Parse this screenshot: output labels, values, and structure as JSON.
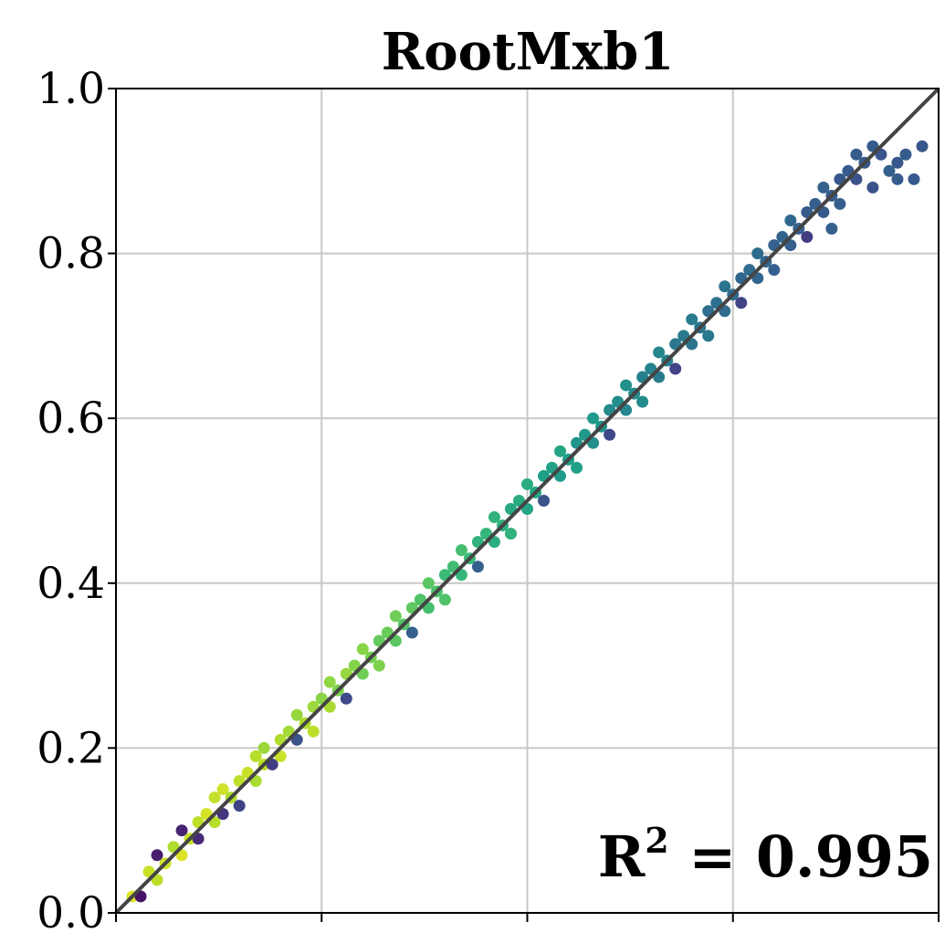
{
  "chart_data": {
    "type": "scatter",
    "title": "RootMxb1",
    "xlabel": "",
    "ylabel": "",
    "xlim": [
      0.0,
      1.0
    ],
    "ylim": [
      0.0,
      1.0
    ],
    "grid": true,
    "y_ticks": [
      0.0,
      0.2,
      0.4,
      0.6,
      0.8,
      1.0
    ],
    "y_tick_labels": [
      "0.0",
      "0.2",
      "0.4",
      "0.6",
      "0.8",
      "1.0"
    ],
    "x_ticks": [
      0.0,
      0.25,
      0.5,
      0.75,
      1.0
    ],
    "x_tick_labels": [
      "",
      "",
      "",
      "",
      ""
    ],
    "reference_line": {
      "from": [
        0.0,
        0.0
      ],
      "to": [
        1.0,
        1.0
      ],
      "color": "#444444"
    },
    "annotation": {
      "base": "R",
      "sup": "2",
      "rest": " = 0.995",
      "position": "bottom-right"
    },
    "colormap": "viridis",
    "colors": {
      "axis": "#000000",
      "grid": "#c8c8c8",
      "reference_line": "#444444"
    },
    "points": [
      {
        "x": 0.02,
        "y": 0.02,
        "c": 0.95
      },
      {
        "x": 0.03,
        "y": 0.02,
        "c": 0.05
      },
      {
        "x": 0.04,
        "y": 0.05,
        "c": 0.92
      },
      {
        "x": 0.05,
        "y": 0.04,
        "c": 0.9
      },
      {
        "x": 0.05,
        "y": 0.07,
        "c": 0.08
      },
      {
        "x": 0.06,
        "y": 0.06,
        "c": 0.93
      },
      {
        "x": 0.07,
        "y": 0.08,
        "c": 0.88
      },
      {
        "x": 0.08,
        "y": 0.07,
        "c": 0.95
      },
      {
        "x": 0.08,
        "y": 0.1,
        "c": 0.1
      },
      {
        "x": 0.09,
        "y": 0.09,
        "c": 0.92
      },
      {
        "x": 0.1,
        "y": 0.11,
        "c": 0.9
      },
      {
        "x": 0.1,
        "y": 0.09,
        "c": 0.12
      },
      {
        "x": 0.11,
        "y": 0.12,
        "c": 0.94
      },
      {
        "x": 0.12,
        "y": 0.11,
        "c": 0.89
      },
      {
        "x": 0.12,
        "y": 0.14,
        "c": 0.91
      },
      {
        "x": 0.13,
        "y": 0.12,
        "c": 0.15
      },
      {
        "x": 0.13,
        "y": 0.15,
        "c": 0.93
      },
      {
        "x": 0.14,
        "y": 0.14,
        "c": 0.88
      },
      {
        "x": 0.15,
        "y": 0.16,
        "c": 0.9
      },
      {
        "x": 0.15,
        "y": 0.13,
        "c": 0.2
      },
      {
        "x": 0.16,
        "y": 0.17,
        "c": 0.92
      },
      {
        "x": 0.17,
        "y": 0.16,
        "c": 0.87
      },
      {
        "x": 0.17,
        "y": 0.19,
        "c": 0.89
      },
      {
        "x": 0.18,
        "y": 0.18,
        "c": 0.9
      },
      {
        "x": 0.18,
        "y": 0.2,
        "c": 0.85
      },
      {
        "x": 0.19,
        "y": 0.18,
        "c": 0.18
      },
      {
        "x": 0.2,
        "y": 0.21,
        "c": 0.88
      },
      {
        "x": 0.2,
        "y": 0.19,
        "c": 0.92
      },
      {
        "x": 0.21,
        "y": 0.22,
        "c": 0.86
      },
      {
        "x": 0.22,
        "y": 0.21,
        "c": 0.25
      },
      {
        "x": 0.22,
        "y": 0.24,
        "c": 0.84
      },
      {
        "x": 0.23,
        "y": 0.23,
        "c": 0.88
      },
      {
        "x": 0.24,
        "y": 0.25,
        "c": 0.85
      },
      {
        "x": 0.24,
        "y": 0.22,
        "c": 0.9
      },
      {
        "x": 0.25,
        "y": 0.26,
        "c": 0.82
      },
      {
        "x": 0.26,
        "y": 0.25,
        "c": 0.87
      },
      {
        "x": 0.26,
        "y": 0.28,
        "c": 0.83
      },
      {
        "x": 0.27,
        "y": 0.27,
        "c": 0.8
      },
      {
        "x": 0.28,
        "y": 0.29,
        "c": 0.84
      },
      {
        "x": 0.28,
        "y": 0.26,
        "c": 0.22
      },
      {
        "x": 0.29,
        "y": 0.3,
        "c": 0.81
      },
      {
        "x": 0.3,
        "y": 0.29,
        "c": 0.78
      },
      {
        "x": 0.3,
        "y": 0.32,
        "c": 0.82
      },
      {
        "x": 0.31,
        "y": 0.31,
        "c": 0.79
      },
      {
        "x": 0.32,
        "y": 0.33,
        "c": 0.76
      },
      {
        "x": 0.32,
        "y": 0.3,
        "c": 0.8
      },
      {
        "x": 0.33,
        "y": 0.34,
        "c": 0.77
      },
      {
        "x": 0.34,
        "y": 0.33,
        "c": 0.74
      },
      {
        "x": 0.34,
        "y": 0.36,
        "c": 0.78
      },
      {
        "x": 0.35,
        "y": 0.35,
        "c": 0.73
      },
      {
        "x": 0.36,
        "y": 0.37,
        "c": 0.75
      },
      {
        "x": 0.36,
        "y": 0.34,
        "c": 0.3
      },
      {
        "x": 0.37,
        "y": 0.38,
        "c": 0.72
      },
      {
        "x": 0.38,
        "y": 0.37,
        "c": 0.7
      },
      {
        "x": 0.38,
        "y": 0.4,
        "c": 0.74
      },
      {
        "x": 0.39,
        "y": 0.39,
        "c": 0.71
      },
      {
        "x": 0.4,
        "y": 0.41,
        "c": 0.68
      },
      {
        "x": 0.4,
        "y": 0.38,
        "c": 0.72
      },
      {
        "x": 0.41,
        "y": 0.42,
        "c": 0.69
      },
      {
        "x": 0.42,
        "y": 0.41,
        "c": 0.66
      },
      {
        "x": 0.42,
        "y": 0.44,
        "c": 0.7
      },
      {
        "x": 0.43,
        "y": 0.43,
        "c": 0.67
      },
      {
        "x": 0.44,
        "y": 0.45,
        "c": 0.64
      },
      {
        "x": 0.44,
        "y": 0.42,
        "c": 0.3
      },
      {
        "x": 0.45,
        "y": 0.46,
        "c": 0.66
      },
      {
        "x": 0.46,
        "y": 0.45,
        "c": 0.62
      },
      {
        "x": 0.46,
        "y": 0.48,
        "c": 0.65
      },
      {
        "x": 0.47,
        "y": 0.47,
        "c": 0.63
      },
      {
        "x": 0.48,
        "y": 0.49,
        "c": 0.6
      },
      {
        "x": 0.48,
        "y": 0.46,
        "c": 0.64
      },
      {
        "x": 0.49,
        "y": 0.5,
        "c": 0.61
      },
      {
        "x": 0.5,
        "y": 0.49,
        "c": 0.58
      },
      {
        "x": 0.5,
        "y": 0.52,
        "c": 0.62
      },
      {
        "x": 0.51,
        "y": 0.51,
        "c": 0.59
      },
      {
        "x": 0.52,
        "y": 0.53,
        "c": 0.56
      },
      {
        "x": 0.52,
        "y": 0.5,
        "c": 0.25
      },
      {
        "x": 0.53,
        "y": 0.54,
        "c": 0.57
      },
      {
        "x": 0.54,
        "y": 0.53,
        "c": 0.54
      },
      {
        "x": 0.54,
        "y": 0.56,
        "c": 0.58
      },
      {
        "x": 0.55,
        "y": 0.55,
        "c": 0.55
      },
      {
        "x": 0.56,
        "y": 0.57,
        "c": 0.52
      },
      {
        "x": 0.56,
        "y": 0.54,
        "c": 0.56
      },
      {
        "x": 0.57,
        "y": 0.58,
        "c": 0.53
      },
      {
        "x": 0.58,
        "y": 0.57,
        "c": 0.5
      },
      {
        "x": 0.58,
        "y": 0.6,
        "c": 0.54
      },
      {
        "x": 0.59,
        "y": 0.59,
        "c": 0.51
      },
      {
        "x": 0.6,
        "y": 0.61,
        "c": 0.48
      },
      {
        "x": 0.6,
        "y": 0.58,
        "c": 0.22
      },
      {
        "x": 0.61,
        "y": 0.62,
        "c": 0.49
      },
      {
        "x": 0.62,
        "y": 0.61,
        "c": 0.46
      },
      {
        "x": 0.62,
        "y": 0.64,
        "c": 0.5
      },
      {
        "x": 0.63,
        "y": 0.63,
        "c": 0.47
      },
      {
        "x": 0.64,
        "y": 0.65,
        "c": 0.44
      },
      {
        "x": 0.64,
        "y": 0.62,
        "c": 0.48
      },
      {
        "x": 0.65,
        "y": 0.66,
        "c": 0.45
      },
      {
        "x": 0.66,
        "y": 0.65,
        "c": 0.42
      },
      {
        "x": 0.66,
        "y": 0.68,
        "c": 0.46
      },
      {
        "x": 0.67,
        "y": 0.67,
        "c": 0.43
      },
      {
        "x": 0.68,
        "y": 0.69,
        "c": 0.4
      },
      {
        "x": 0.68,
        "y": 0.66,
        "c": 0.2
      },
      {
        "x": 0.69,
        "y": 0.7,
        "c": 0.41
      },
      {
        "x": 0.7,
        "y": 0.69,
        "c": 0.38
      },
      {
        "x": 0.7,
        "y": 0.72,
        "c": 0.42
      },
      {
        "x": 0.71,
        "y": 0.71,
        "c": 0.39
      },
      {
        "x": 0.72,
        "y": 0.73,
        "c": 0.36
      },
      {
        "x": 0.72,
        "y": 0.7,
        "c": 0.4
      },
      {
        "x": 0.73,
        "y": 0.74,
        "c": 0.37
      },
      {
        "x": 0.74,
        "y": 0.73,
        "c": 0.34
      },
      {
        "x": 0.74,
        "y": 0.76,
        "c": 0.38
      },
      {
        "x": 0.75,
        "y": 0.75,
        "c": 0.35
      },
      {
        "x": 0.76,
        "y": 0.77,
        "c": 0.33
      },
      {
        "x": 0.76,
        "y": 0.74,
        "c": 0.2
      },
      {
        "x": 0.77,
        "y": 0.78,
        "c": 0.34
      },
      {
        "x": 0.78,
        "y": 0.77,
        "c": 0.32
      },
      {
        "x": 0.78,
        "y": 0.8,
        "c": 0.35
      },
      {
        "x": 0.79,
        "y": 0.79,
        "c": 0.33
      },
      {
        "x": 0.8,
        "y": 0.81,
        "c": 0.31
      },
      {
        "x": 0.8,
        "y": 0.78,
        "c": 0.3
      },
      {
        "x": 0.81,
        "y": 0.82,
        "c": 0.32
      },
      {
        "x": 0.82,
        "y": 0.81,
        "c": 0.3
      },
      {
        "x": 0.82,
        "y": 0.84,
        "c": 0.33
      },
      {
        "x": 0.83,
        "y": 0.83,
        "c": 0.31
      },
      {
        "x": 0.84,
        "y": 0.85,
        "c": 0.29
      },
      {
        "x": 0.84,
        "y": 0.82,
        "c": 0.18
      },
      {
        "x": 0.85,
        "y": 0.86,
        "c": 0.3
      },
      {
        "x": 0.86,
        "y": 0.85,
        "c": 0.28
      },
      {
        "x": 0.86,
        "y": 0.88,
        "c": 0.31
      },
      {
        "x": 0.87,
        "y": 0.87,
        "c": 0.29
      },
      {
        "x": 0.88,
        "y": 0.89,
        "c": 0.27
      },
      {
        "x": 0.88,
        "y": 0.86,
        "c": 0.3
      },
      {
        "x": 0.89,
        "y": 0.9,
        "c": 0.28
      },
      {
        "x": 0.9,
        "y": 0.89,
        "c": 0.26
      },
      {
        "x": 0.9,
        "y": 0.92,
        "c": 0.29
      },
      {
        "x": 0.91,
        "y": 0.91,
        "c": 0.27
      },
      {
        "x": 0.92,
        "y": 0.93,
        "c": 0.28
      },
      {
        "x": 0.93,
        "y": 0.92,
        "c": 0.26
      },
      {
        "x": 0.94,
        "y": 0.9,
        "c": 0.3
      },
      {
        "x": 0.95,
        "y": 0.91,
        "c": 0.27
      },
      {
        "x": 0.96,
        "y": 0.92,
        "c": 0.29
      },
      {
        "x": 0.97,
        "y": 0.89,
        "c": 0.28
      },
      {
        "x": 0.98,
        "y": 0.93,
        "c": 0.27
      },
      {
        "x": 0.95,
        "y": 0.89,
        "c": 0.29
      },
      {
        "x": 0.92,
        "y": 0.88,
        "c": 0.26
      },
      {
        "x": 0.87,
        "y": 0.83,
        "c": 0.3
      }
    ]
  }
}
